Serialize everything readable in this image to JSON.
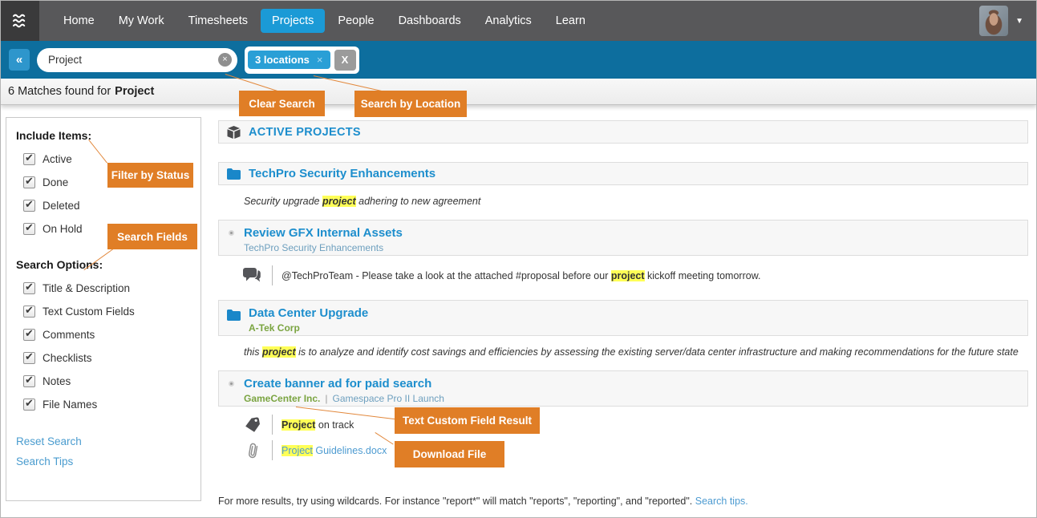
{
  "nav": {
    "items": [
      {
        "label": "Home",
        "active": false
      },
      {
        "label": "My Work",
        "active": false
      },
      {
        "label": "Timesheets",
        "active": false
      },
      {
        "label": "Projects",
        "active": true
      },
      {
        "label": "People",
        "active": false
      },
      {
        "label": "Dashboards",
        "active": false
      },
      {
        "label": "Analytics",
        "active": false
      },
      {
        "label": "Learn",
        "active": false
      }
    ],
    "caret": "▼"
  },
  "search": {
    "collapse_label": "«",
    "value": "Project",
    "clear_icon": "×",
    "location_chip": "3 locations",
    "chip_close": "×",
    "clear_all": "X"
  },
  "matches": {
    "prefix": "6 Matches found for",
    "term": "Project"
  },
  "callouts": {
    "clear_search": "Clear Search",
    "search_by_location": "Search by Location",
    "filter_by_status": "Filter by Status",
    "search_fields": "Search Fields",
    "text_custom_field": "Text Custom Field Result",
    "download_file": "Download File"
  },
  "sidebar": {
    "include_heading": "Include Items:",
    "include_items": [
      {
        "label": "Active",
        "checked": true
      },
      {
        "label": "Done",
        "checked": true
      },
      {
        "label": "Deleted",
        "checked": true
      },
      {
        "label": "On Hold",
        "checked": true
      }
    ],
    "options_heading": "Search Options:",
    "option_items": [
      {
        "label": "Title & Description",
        "checked": true
      },
      {
        "label": "Text Custom Fields",
        "checked": true
      },
      {
        "label": "Comments",
        "checked": true
      },
      {
        "label": "Checklists",
        "checked": true
      },
      {
        "label": "Notes",
        "checked": true
      },
      {
        "label": "File Names",
        "checked": true
      }
    ],
    "links": [
      {
        "label": "Reset Search"
      },
      {
        "label": "Search Tips"
      }
    ]
  },
  "results": {
    "group_header": "ACTIVE PROJECTS",
    "techpro": {
      "title": "TechPro Security Enhancements",
      "desc": [
        {
          "text": "Security upgrade "
        },
        {
          "text": "project",
          "cls": "hl b"
        },
        {
          "text": " adhering to new agreement"
        }
      ]
    },
    "review": {
      "title": "Review GFX Internal Assets",
      "subtitle": "TechPro Security Enhancements",
      "comment": [
        {
          "text": "@TechProTeam - Please take a look at the attached #proposal before our "
        },
        {
          "text": "project",
          "cls": "hl b"
        },
        {
          "text": " kickoff meeting tomorrow."
        }
      ]
    },
    "datacenter": {
      "title": "Data Center Upgrade",
      "client": "A-Tek Corp",
      "desc": [
        {
          "text": "this "
        },
        {
          "text": "project",
          "cls": "hl b"
        },
        {
          "text": " is to analyze and identify cost savings and efficiencies by assessing the existing server/data center infrastructure and making recommendations for the future state"
        }
      ]
    },
    "banner": {
      "title": "Create banner ad for paid search",
      "client": "GameCenter Inc.",
      "sep": "|",
      "project_name": "Gamespace Pro II Launch",
      "tag": [
        {
          "text": "Project",
          "cls": "hl b"
        },
        {
          "text": " on track"
        }
      ],
      "file": [
        {
          "text": "Project",
          "cls": "hl link"
        },
        {
          "text": " Guidelines.docx",
          "cls": "link"
        }
      ]
    }
  },
  "footer": {
    "tip": [
      {
        "text": "For more results, try using wildcards. For instance \"report*\" will match \"reports\", \"reporting\", and \"reported\". "
      },
      {
        "text": "Search tips.",
        "cls": "link"
      }
    ]
  }
}
